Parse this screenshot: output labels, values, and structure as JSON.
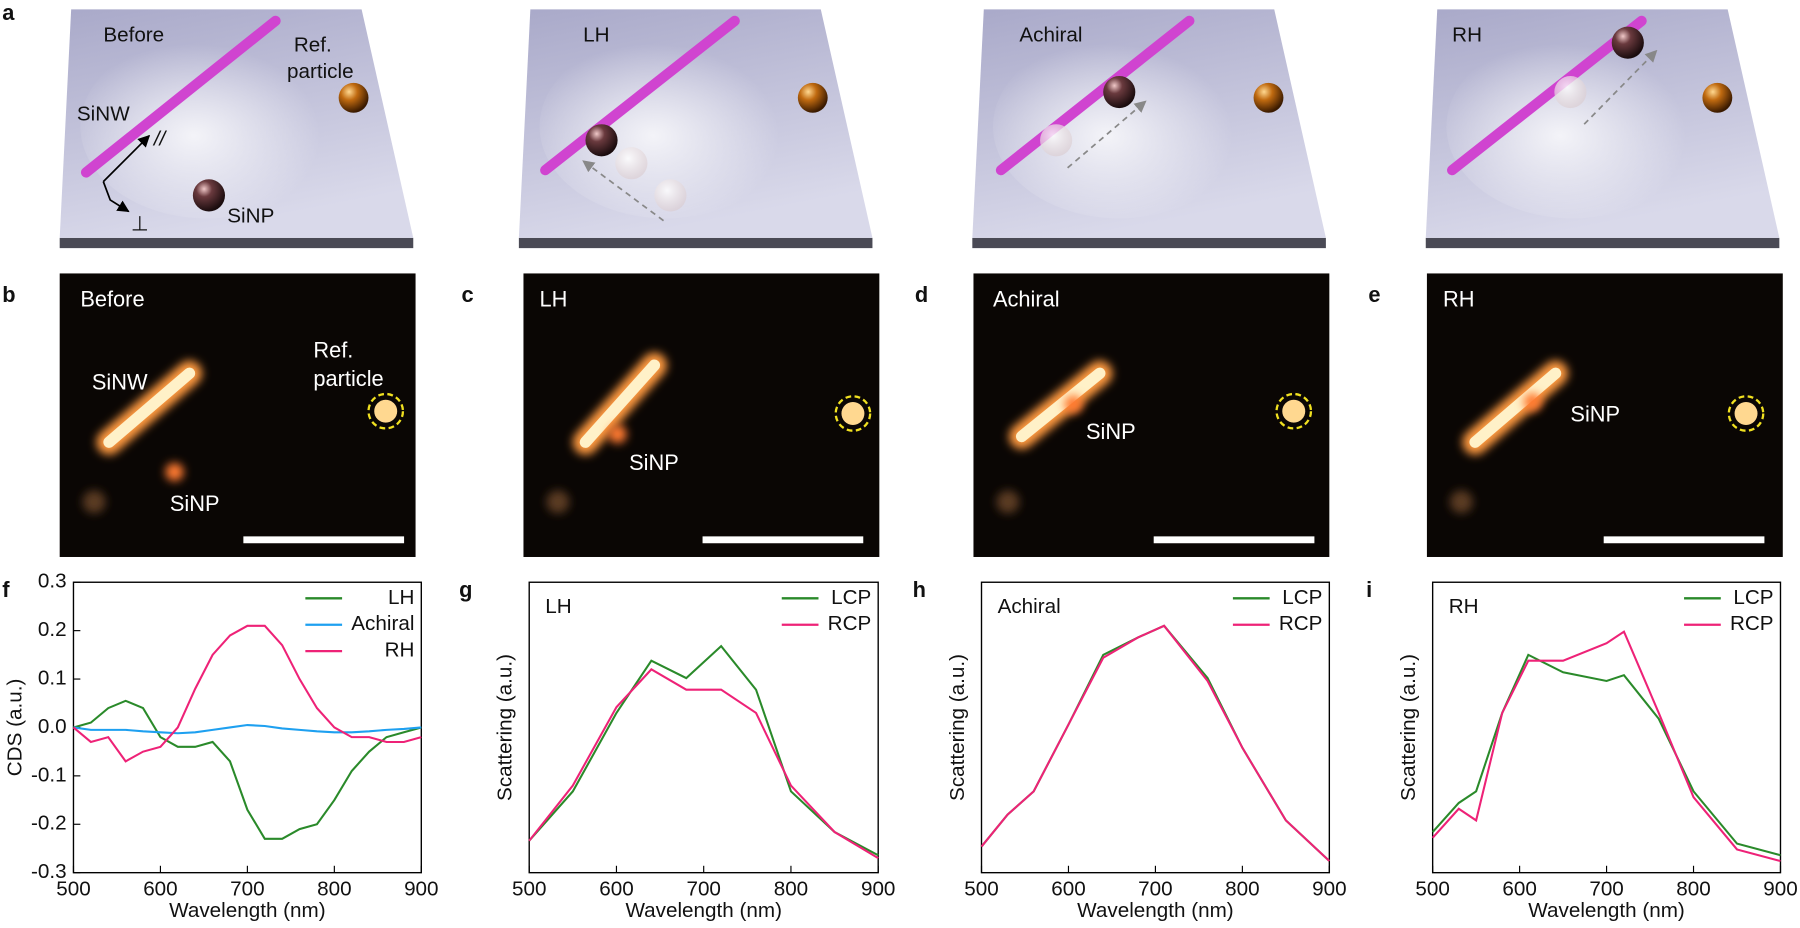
{
  "panel_labels": [
    "a",
    "b",
    "c",
    "d",
    "e",
    "f",
    "g",
    "h",
    "i"
  ],
  "schematic": {
    "panels": [
      "Before",
      "LH",
      "Achiral",
      "RH"
    ],
    "ref_particle": [
      "Ref.",
      "particle"
    ],
    "nanowire": "SiNW",
    "parallel": "//",
    "perpendicular": "⊥",
    "nanoparticle": "SiNP"
  },
  "micrographs": [
    {
      "texts": [
        "Before",
        "SiNW",
        "Ref.",
        "particle",
        "SiNP"
      ]
    },
    {
      "texts": [
        "LH",
        "SiNP"
      ]
    },
    {
      "texts": [
        "Achiral",
        "SiNP"
      ]
    },
    {
      "texts": [
        "RH",
        "SiNP"
      ]
    }
  ],
  "chart_data": [
    {
      "type": "line",
      "y_label": "CDS (a.u.)",
      "x_label": "Wavelength (nm)",
      "legend": "upper right",
      "x": [
        500,
        520,
        540,
        560,
        580,
        600,
        620,
        640,
        660,
        680,
        700,
        720,
        740,
        760,
        780,
        800,
        820,
        840,
        860,
        880,
        900
      ],
      "xlim": [
        500,
        900
      ],
      "xticks": [
        500,
        600,
        700,
        800,
        900
      ],
      "ylim": [
        -0.3,
        0.3
      ],
      "yticks": [
        -0.3,
        -0.2,
        -0.1,
        {
          "value": 0,
          "label": "0.0"
        },
        0.1,
        0.2,
        0.3
      ],
      "series": [
        {
          "name": "LH",
          "color": "#2a8a2a",
          "values": [
            0.0,
            0.01,
            0.04,
            0.055,
            0.04,
            -0.02,
            -0.04,
            -0.04,
            -0.03,
            -0.07,
            -0.17,
            -0.23,
            -0.23,
            -0.21,
            -0.2,
            -0.15,
            -0.09,
            -0.05,
            -0.02,
            -0.01,
            0.0
          ]
        },
        {
          "name": "Achiral",
          "color": "#1ea0f0",
          "values": [
            0.0,
            -0.005,
            -0.005,
            -0.005,
            -0.008,
            -0.01,
            -0.012,
            -0.01,
            -0.005,
            0.0,
            0.005,
            0.003,
            -0.002,
            -0.005,
            -0.008,
            -0.01,
            -0.01,
            -0.008,
            -0.005,
            -0.003,
            0.0
          ]
        },
        {
          "name": "RH",
          "color": "#ee2277",
          "values": [
            0.0,
            -0.03,
            -0.02,
            -0.07,
            -0.05,
            -0.04,
            0.0,
            0.08,
            0.15,
            0.19,
            0.21,
            0.21,
            0.17,
            0.1,
            0.04,
            0.0,
            -0.02,
            -0.02,
            -0.03,
            -0.03,
            -0.02
          ]
        }
      ]
    },
    {
      "type": "line",
      "title": "LH",
      "y_label": "Scattering (a.u.)",
      "x_label": "Wavelength (nm)",
      "legend": "upper right",
      "x": [
        500,
        550,
        600,
        640,
        680,
        720,
        760,
        800,
        850,
        900
      ],
      "xlim": [
        500,
        900
      ],
      "xticks": [
        500,
        600,
        700,
        800,
        900
      ],
      "ylim": [
        0,
        1
      ],
      "series": [
        {
          "name": "LCP",
          "color": "#2a8a2a",
          "values": [
            0.11,
            0.28,
            0.55,
            0.73,
            0.67,
            0.78,
            0.63,
            0.28,
            0.14,
            0.06
          ]
        },
        {
          "name": "RCP",
          "color": "#ee2277",
          "values": [
            0.11,
            0.3,
            0.57,
            0.7,
            0.63,
            0.63,
            0.55,
            0.3,
            0.14,
            0.05
          ]
        }
      ]
    },
    {
      "type": "line",
      "title": "Achiral",
      "y_label": "Scattering (a.u.)",
      "x_label": "Wavelength (nm)",
      "legend": "upper right",
      "x": [
        500,
        530,
        560,
        600,
        640,
        680,
        710,
        760,
        800,
        850,
        900
      ],
      "xlim": [
        500,
        900
      ],
      "xticks": [
        500,
        600,
        700,
        800,
        900
      ],
      "ylim": [
        0,
        1
      ],
      "series": [
        {
          "name": "LCP",
          "color": "#2a8a2a",
          "values": [
            0.09,
            0.2,
            0.28,
            0.51,
            0.75,
            0.81,
            0.85,
            0.67,
            0.43,
            0.18,
            0.04
          ]
        },
        {
          "name": "RCP",
          "color": "#ee2277",
          "values": [
            0.09,
            0.2,
            0.28,
            0.51,
            0.74,
            0.81,
            0.85,
            0.66,
            0.43,
            0.18,
            0.04
          ]
        }
      ]
    },
    {
      "type": "line",
      "title": "RH",
      "y_label": "Scattering (a.u.)",
      "x_label": "Wavelength (nm)",
      "legend": "upper right",
      "x": [
        500,
        530,
        550,
        580,
        610,
        650,
        700,
        720,
        760,
        800,
        850,
        900
      ],
      "xlim": [
        500,
        900
      ],
      "xticks": [
        500,
        600,
        700,
        800,
        900
      ],
      "ylim": [
        0,
        1
      ],
      "series": [
        {
          "name": "LCP",
          "color": "#2a8a2a",
          "values": [
            0.14,
            0.24,
            0.28,
            0.55,
            0.75,
            0.69,
            0.66,
            0.68,
            0.53,
            0.28,
            0.1,
            0.06
          ]
        },
        {
          "name": "RCP",
          "color": "#ee2277",
          "values": [
            0.12,
            0.22,
            0.18,
            0.55,
            0.73,
            0.73,
            0.79,
            0.83,
            0.55,
            0.26,
            0.08,
            0.04
          ]
        }
      ]
    }
  ]
}
